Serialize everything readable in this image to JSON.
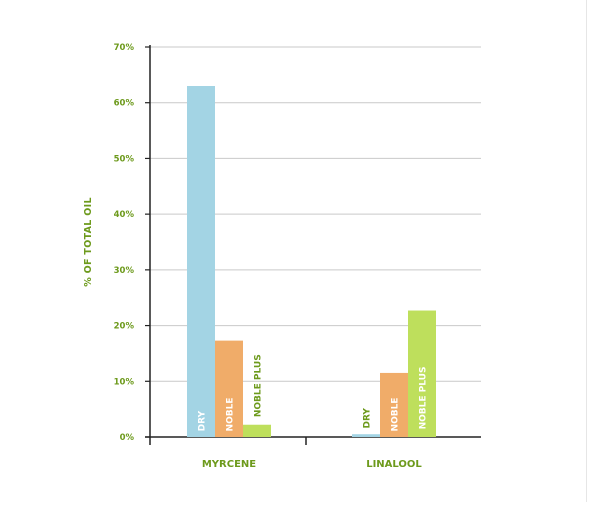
{
  "chart_data": {
    "type": "bar",
    "categories": [
      "MYRCENE",
      "LINALOOL"
    ],
    "series": [
      {
        "name": "DRY",
        "values": [
          63,
          0.5
        ],
        "color": "#a3d4e4"
      },
      {
        "name": "NOBLE",
        "values": [
          17.3,
          11.5
        ],
        "color": "#f0ac69"
      },
      {
        "name": "NOBLE PLUS",
        "values": [
          2.2,
          22.7
        ],
        "color": "#bedf5c"
      }
    ],
    "ylabel": "% OF TOTAL OIL",
    "ylim": [
      0,
      70
    ],
    "yticks": [
      0,
      10,
      20,
      30,
      40,
      50,
      60,
      70
    ],
    "ytick_labels": [
      "0%",
      "10%",
      "20%",
      "30%",
      "40%",
      "50%",
      "60%",
      "70%"
    ],
    "grid": true,
    "label_color": "#6d9a1c",
    "grid_color": "#c9c9c9",
    "axis_color": "#222222"
  }
}
